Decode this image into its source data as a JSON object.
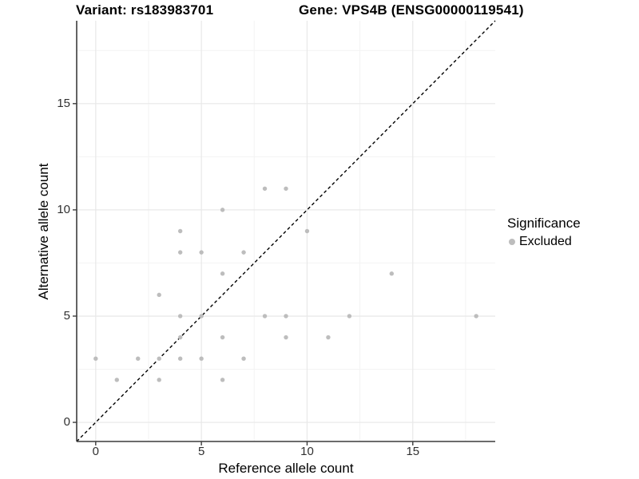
{
  "chart_data": {
    "type": "scatter",
    "title_left": "Variant: rs183983701",
    "title_right": "Gene: VPS4B (ENSG00000119541)",
    "xlabel": "Reference allele count",
    "ylabel": "Alternative allele count",
    "xlim": [
      -0.9,
      18.9
    ],
    "ylim": [
      -0.9,
      18.9
    ],
    "ticks": {
      "values": [
        0,
        5,
        10,
        15
      ],
      "labels": [
        "0",
        "5",
        "10",
        "15"
      ]
    },
    "minor_gridlines": [
      2.5,
      7.5,
      12.5,
      17.5
    ],
    "series": [
      {
        "name": "Excluded",
        "color": "#bdbdbd",
        "points": [
          [
            0,
            3
          ],
          [
            1,
            2
          ],
          [
            2,
            3
          ],
          [
            3,
            2
          ],
          [
            3,
            3
          ],
          [
            3,
            6
          ],
          [
            4,
            3
          ],
          [
            4,
            4
          ],
          [
            4,
            5
          ],
          [
            4,
            8
          ],
          [
            4,
            9
          ],
          [
            5,
            3
          ],
          [
            5,
            5
          ],
          [
            5,
            8
          ],
          [
            6,
            2
          ],
          [
            6,
            4
          ],
          [
            6,
            7
          ],
          [
            6,
            10
          ],
          [
            7,
            3
          ],
          [
            7,
            8
          ],
          [
            8,
            5
          ],
          [
            8,
            11
          ],
          [
            9,
            4
          ],
          [
            9,
            5
          ],
          [
            9,
            11
          ],
          [
            10,
            9
          ],
          [
            11,
            4
          ],
          [
            12,
            5
          ],
          [
            14,
            7
          ],
          [
            18,
            5
          ]
        ]
      }
    ],
    "identity_line": {
      "style": "dashed",
      "from": [
        -0.9,
        -0.9
      ],
      "to": [
        18.9,
        18.9
      ],
      "color": "#000000"
    },
    "legend": {
      "title": "Significance",
      "position": "right",
      "items": [
        {
          "label": "Excluded",
          "color": "#bdbdbd"
        }
      ]
    },
    "grid": {
      "on": true,
      "major_color": "#e8e8e8",
      "minor_color": "#f3f3f3"
    },
    "axis_color": "#3c3c3c"
  }
}
